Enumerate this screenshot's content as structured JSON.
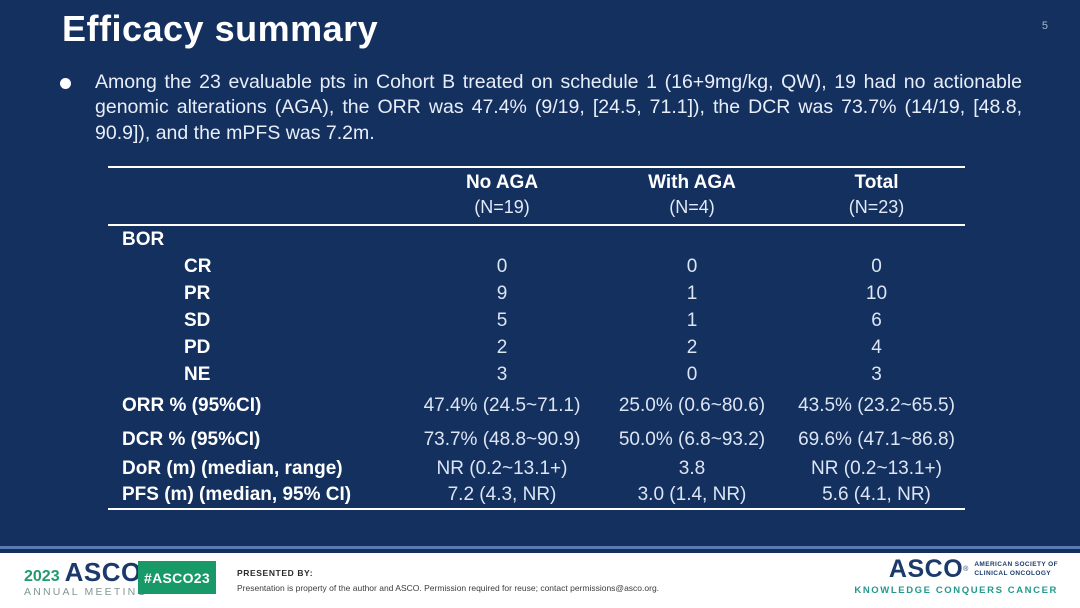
{
  "slide": {
    "page_number": "5",
    "title": "Efficacy summary",
    "bullet_text": "Among the 23 evaluable pts in Cohort B treated on schedule 1 (16+9mg/kg, QW), 19 had no actionable genomic alterations (AGA), the ORR was 47.4% (9/19, [24.5, 71.1]), the DCR was 73.7% (14/19, [48.8, 90.9]), and the mPFS was 7.2m."
  },
  "table": {
    "header": {
      "col1": {
        "label": "No AGA",
        "n": "(N=19)"
      },
      "col2": {
        "label": "With AGA",
        "n": "(N=4)"
      },
      "col3": {
        "label": "Total",
        "n": "(N=23)"
      }
    },
    "rows": [
      {
        "label": "BOR",
        "values": [
          "",
          "",
          ""
        ]
      },
      {
        "label": "CR",
        "values": [
          "0",
          "0",
          "0"
        ]
      },
      {
        "label": "PR",
        "values": [
          "9",
          "1",
          "10"
        ]
      },
      {
        "label": "SD",
        "values": [
          "5",
          "1",
          "6"
        ]
      },
      {
        "label": "PD",
        "values": [
          "2",
          "2",
          "4"
        ]
      },
      {
        "label": "NE",
        "values": [
          "3",
          "0",
          "3"
        ]
      },
      {
        "label": "ORR % (95%CI)",
        "values": [
          "47.4% (24.5~71.1)",
          "25.0% (0.6~80.6)",
          "43.5% (23.2~65.5)"
        ]
      },
      {
        "label": "DCR % (95%CI)",
        "values": [
          "73.7% (48.8~90.9)",
          "50.0% (6.8~93.2)",
          "69.6% (47.1~86.8)"
        ]
      },
      {
        "label": "DoR (m) (median, range)",
        "values": [
          "NR (0.2~13.1+)",
          "3.8",
          "NR (0.2~13.1+)"
        ]
      },
      {
        "label": "PFS (m) (median, 95% CI)",
        "values": [
          "7.2 (4.3, NR)",
          "3.0 (1.4, NR)",
          "5.6 (4.1, NR)"
        ]
      }
    ]
  },
  "footer": {
    "meeting_year": "2023",
    "meeting_logo": "ASCO",
    "meeting_sub": "ANNUAL MEETING",
    "reg_mark": "®",
    "hashtag": "#ASCO23",
    "presented_by": "PRESENTED BY:",
    "disclaimer": "Presentation is property of the author and ASCO. Permission required for reuse; contact permissions@asco.org.",
    "org_logo": "ASCO",
    "org_name_line1": "AMERICAN SOCIETY OF",
    "org_name_line2": "CLINICAL ONCOLOGY",
    "org_tagline": "KNOWLEDGE CONQUERS CANCER"
  },
  "colors": {
    "slide_bg": "#14305f",
    "accent_green": "#189a68",
    "logo_navy": "#1b3a6b",
    "tagline_teal": "#23998e",
    "footer_rule_blue": "#5b7ab1",
    "table_text": "#dce5f3"
  }
}
